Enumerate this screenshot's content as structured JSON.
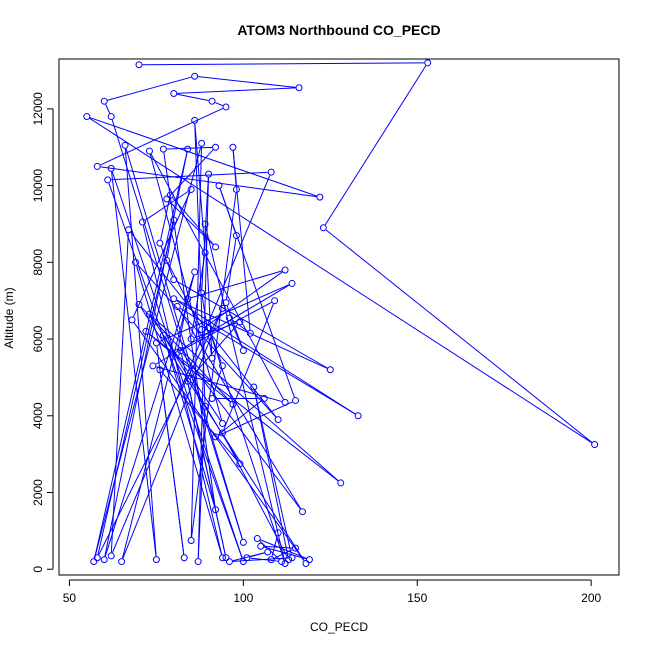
{
  "chart_data": {
    "type": "line",
    "title": "ATOM3 Northbound CO_PECD",
    "xlabel": "CO_PECD",
    "ylabel": "Altitude (m)",
    "xlim": [
      47,
      208
    ],
    "ylim": [
      -150,
      13300
    ],
    "xticks": [
      50,
      100,
      150,
      200
    ],
    "yticks": [
      0,
      2000,
      4000,
      6000,
      8000,
      10000,
      12000
    ],
    "grid": false,
    "series_color": "#0000ff",
    "marker": "open-circle",
    "series": [
      {
        "points": [
          [
            70,
            13150
          ],
          [
            153,
            13200
          ],
          [
            123,
            8900
          ],
          [
            201,
            3250
          ],
          [
            55,
            11800
          ],
          [
            122,
            9700
          ],
          [
            58,
            10500
          ],
          [
            95,
            12050
          ],
          [
            91,
            12200
          ],
          [
            80,
            12400
          ],
          [
            116,
            12550
          ],
          [
            86,
            12850
          ],
          [
            60,
            12200
          ],
          [
            62,
            11800
          ],
          [
            100,
            700
          ],
          [
            66,
            11050
          ],
          [
            75,
            250
          ],
          [
            62,
            10450
          ],
          [
            100,
            200
          ],
          [
            61,
            10150
          ],
          [
            108,
            10350
          ],
          [
            62,
            350
          ],
          [
            67,
            8850
          ],
          [
            110,
            3900
          ],
          [
            69,
            8000
          ],
          [
            94,
            300
          ],
          [
            71,
            9050
          ],
          [
            85,
            9900
          ],
          [
            68,
            6500
          ],
          [
            118,
            150
          ],
          [
            70,
            6900
          ],
          [
            97,
            4300
          ],
          [
            72,
            6200
          ],
          [
            128,
            2250
          ],
          [
            73,
            6650
          ],
          [
            94,
            3800
          ],
          [
            73,
            10900
          ],
          [
            112,
            4350
          ],
          [
            74,
            5300
          ],
          [
            114,
            7450
          ],
          [
            75,
            5900
          ],
          [
            83,
            300
          ],
          [
            76,
            5200
          ],
          [
            99,
            2750
          ],
          [
            77,
            6100
          ],
          [
            92,
            1550
          ],
          [
            77,
            10950
          ],
          [
            92,
            11000
          ],
          [
            78,
            9650
          ],
          [
            92,
            8400
          ],
          [
            79,
            9750
          ],
          [
            76,
            8500
          ],
          [
            80,
            7550
          ],
          [
            125,
            5200
          ],
          [
            80,
            7050
          ],
          [
            133,
            4000
          ],
          [
            81,
            6850
          ],
          [
            117,
            1500
          ],
          [
            82,
            5700
          ],
          [
            95,
            300
          ],
          [
            84,
            4900
          ],
          [
            99,
            6450
          ],
          [
            85,
            6000
          ],
          [
            89,
            8250
          ],
          [
            86,
            11700
          ],
          [
            89,
            4250
          ],
          [
            87,
            200
          ],
          [
            90,
            10300
          ],
          [
            88,
            7200
          ],
          [
            91,
            5500
          ],
          [
            89,
            9000
          ],
          [
            112,
            150
          ],
          [
            90,
            6300
          ],
          [
            94,
            5300
          ],
          [
            91,
            4450
          ],
          [
            106,
            4450
          ],
          [
            92,
            3450
          ],
          [
            115,
            4400
          ],
          [
            93,
            10000
          ],
          [
            98,
            8700
          ],
          [
            95,
            6950
          ],
          [
            100,
            5700
          ],
          [
            96,
            6550
          ],
          [
            102,
            6150
          ],
          [
            97,
            11000
          ],
          [
            98,
            9900
          ],
          [
            85,
            750
          ],
          [
            88,
            11100
          ],
          [
            57,
            200
          ],
          [
            84,
            10950
          ],
          [
            60,
            250
          ],
          [
            86,
            7750
          ],
          [
            65,
            200
          ],
          [
            94,
            6800
          ],
          [
            58,
            300
          ],
          [
            80,
            9100
          ],
          [
            78,
            8050
          ],
          [
            88,
            6250
          ],
          [
            112,
            7800
          ],
          [
            84,
            7050
          ],
          [
            81,
            5650
          ],
          [
            109,
            7000
          ],
          [
            94,
            3550
          ],
          [
            113,
            250
          ],
          [
            103,
            4750
          ],
          [
            114,
            300
          ],
          [
            96,
            200
          ],
          [
            107,
            450
          ],
          [
            101,
            300
          ],
          [
            111,
            200
          ],
          [
            104,
            800
          ],
          [
            119,
            250
          ],
          [
            105,
            600
          ],
          [
            115,
            550
          ],
          [
            108,
            250
          ],
          [
            110,
            950
          ]
        ]
      }
    ]
  }
}
